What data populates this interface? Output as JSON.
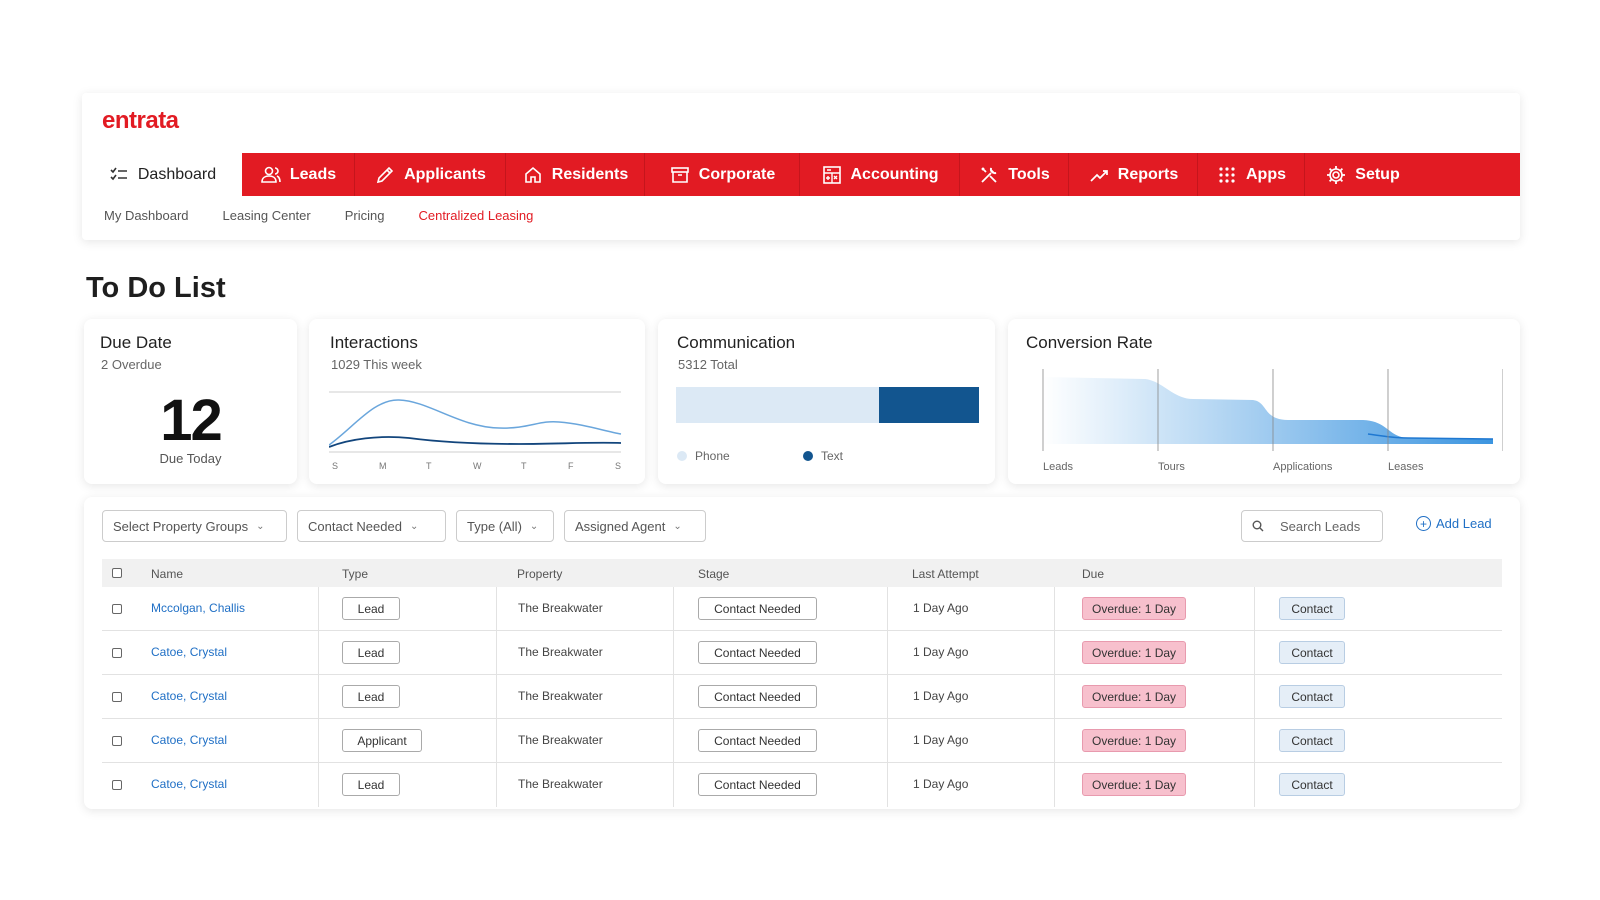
{
  "brand": {
    "name": "entrata",
    "color": "#e21b23"
  },
  "nav": [
    {
      "label": "Dashboard",
      "icon": "checklist-icon",
      "active": true
    },
    {
      "label": "Leads",
      "icon": "users-icon"
    },
    {
      "label": "Applicants",
      "icon": "pencil-icon"
    },
    {
      "label": "Residents",
      "icon": "home-icon"
    },
    {
      "label": "Corporate",
      "icon": "archive-icon"
    },
    {
      "label": "Accounting",
      "icon": "calculator-icon"
    },
    {
      "label": "Tools",
      "icon": "tools-icon"
    },
    {
      "label": "Reports",
      "icon": "trend-icon"
    },
    {
      "label": "Apps",
      "icon": "grid-icon"
    },
    {
      "label": "Setup",
      "icon": "gear-icon"
    }
  ],
  "subnav": [
    {
      "label": "My Dashboard"
    },
    {
      "label": "Leasing Center"
    },
    {
      "label": "Pricing"
    },
    {
      "label": "Centralized Leasing",
      "active": true
    }
  ],
  "page_title": "To Do List",
  "cards": {
    "due_date": {
      "title": "Due Date",
      "subtitle": "2 Overdue",
      "value": "12",
      "label": "Due Today"
    },
    "interactions": {
      "title": "Interactions",
      "subtitle": "1029 This week",
      "days": [
        "S",
        "M",
        "T",
        "W",
        "T",
        "F",
        "S"
      ]
    },
    "communication": {
      "title": "Communication",
      "subtitle": "5312 Total",
      "phone_label": "Phone",
      "text_label": "Text",
      "phone_share": 0.67,
      "text_share": 0.33
    },
    "conversion": {
      "title": "Conversion Rate",
      "stages": [
        "Leads",
        "Tours",
        "Applications",
        "Leases"
      ]
    }
  },
  "filters": {
    "property_groups": "Select Property Groups",
    "contact": "Contact Needed",
    "type": "Type (All)",
    "agent": "Assigned Agent",
    "search_placeholder": "Search Leads",
    "add_lead": "Add Lead"
  },
  "table": {
    "headers": {
      "name": "Name",
      "type": "Type",
      "property": "Property",
      "stage": "Stage",
      "last_attempt": "Last Attempt",
      "due": "Due"
    },
    "rows": [
      {
        "name": "Mccolgan, Challis",
        "type": "Lead",
        "property": "The Breakwater",
        "stage": "Contact Needed",
        "last_attempt": "1 Day Ago",
        "due": "Overdue: 1 Day",
        "action": "Contact"
      },
      {
        "name": "Catoe, Crystal",
        "type": "Lead",
        "property": "The Breakwater",
        "stage": "Contact Needed",
        "last_attempt": "1 Day Ago",
        "due": "Overdue: 1 Day",
        "action": "Contact"
      },
      {
        "name": "Catoe, Crystal",
        "type": "Lead",
        "property": "The Breakwater",
        "stage": "Contact Needed",
        "last_attempt": "1 Day Ago",
        "due": "Overdue: 1 Day",
        "action": "Contact"
      },
      {
        "name": "Catoe, Crystal",
        "type": "Applicant",
        "property": "The Breakwater",
        "stage": "Contact Needed",
        "last_attempt": "1 Day Ago",
        "due": "Overdue: 1 Day",
        "action": "Contact"
      },
      {
        "name": "Catoe, Crystal",
        "type": "Lead",
        "property": "The Breakwater",
        "stage": "Contact Needed",
        "last_attempt": "1 Day Ago",
        "due": "Overdue: 1 Day",
        "action": "Contact"
      }
    ]
  },
  "colors": {
    "dark_blue": "#12558f",
    "light_blue": "#dce9f5",
    "link_blue": "#1f6fc5",
    "overdue_pink": "#f7c0cd"
  }
}
